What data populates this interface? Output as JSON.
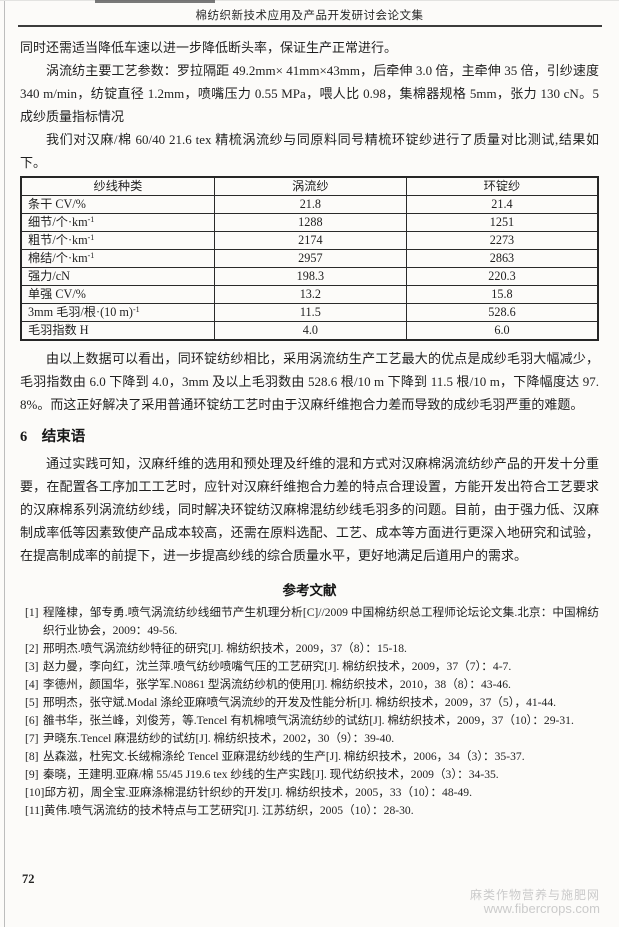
{
  "header": {
    "title": "棉纺织新技术应用及产品开发研讨会论文集"
  },
  "body": {
    "para1": "同时还需适当降低车速以进一步降低断头率，保证生产正常进行。",
    "para2": "涡流纺主要工艺参数：罗拉隔距 49.2mm× 41mm×43mm，后牵伸 3.0 倍，主牵伸 35 倍，引纱速度 340 m/min，纺锭直径 1.2mm，喷嘴压力 0.55 MPa，喂人比 0.98，集棉器规格 5mm，张力 130 cN。5　成纱质量指标情况",
    "table_intro": "我们对汉麻/棉 60/40 21.6 tex 精梳涡流纱与同原料同号精梳环锭纱进行了质量对比测试,结果如下。",
    "after_table": "由以上数据可以看出，同环锭纺纱相比，采用涡流纺生产工艺最大的优点是成纱毛羽大幅减少，毛羽指数由 6.0 下降到 4.0，3mm 及以上毛羽数由 528.6 根/10 m 下降到 11.5 根/10 m，下降幅度达 97.8%。而这正好解决了采用普通环锭纺工艺时由于汉麻纤维抱合力差而导致的成纱毛羽严重的难题。",
    "section_heading": "6　结束语",
    "conclusion": "通过实践可知，汉麻纤维的选用和预处理及纤维的混和方式对汉麻棉涡流纺纱产品的开发十分重要，在配置各工序加工工艺时，应针对汉麻纤维抱合力差的特点合理设置，方能开发出符合工艺要求的汉麻棉系列涡流纺纱线，同时解决环锭纺汉麻棉混纺纱线毛羽多的问题。目前，由于强力低、汉麻制成率低等因素致使产品成本较高，还需在原料选配、工艺、成本等方面进行更深入地研究和试验，在提高制成率的前提下，进一步提高纱线的综合质量水平，更好地满足后道用户的需求。"
  },
  "table": {
    "headers": [
      "纱线种类",
      "涡流纱",
      "环锭纱"
    ],
    "rows": [
      {
        "label": "条干 CV/%",
        "sup": "",
        "vortex": "21.8",
        "ring": "21.4"
      },
      {
        "label": "细节/个·km",
        "sup": "-1",
        "vortex": "1288",
        "ring": "1251"
      },
      {
        "label": "粗节/个·km",
        "sup": "-1",
        "vortex": "2174",
        "ring": "2273"
      },
      {
        "label": "棉结/个·km",
        "sup": "-1",
        "vortex": "2957",
        "ring": "2863"
      },
      {
        "label": "强力/cN",
        "sup": "",
        "vortex": "198.3",
        "ring": "220.3"
      },
      {
        "label": "单强 CV/%",
        "sup": "",
        "vortex": "13.2",
        "ring": "15.8"
      },
      {
        "label": "3mm 毛羽/根·(10 m)",
        "sup": "-1",
        "vortex": "11.5",
        "ring": "528.6"
      },
      {
        "label": "毛羽指数 H",
        "sup": "",
        "vortex": "4.0",
        "ring": "6.0"
      }
    ]
  },
  "references": {
    "heading": "参考文献",
    "items": [
      {
        "num": "[1]",
        "text": "程隆棣，邹专勇.喷气涡流纺纱线细节产生机理分析[C]//2009 中国棉纺织总工程师论坛论文集.北京：中国棉纺织行业协会，2009：49-56."
      },
      {
        "num": "[2]",
        "text": "邢明杰.喷气涡流纺纱特征的研究[J]. 棉纺织技术，2009，37（8）：15-18."
      },
      {
        "num": "[3]",
        "text": "赵力曼，李向红，沈兰萍.喷气纺纱喷嘴气压的工艺研究[J]. 棉纺织技术，2009，37（7）：4-7."
      },
      {
        "num": "[4]",
        "text": "李德州，颜国华，张学军.N0861 型涡流纺纱机的使用[J]. 棉纺织技术，2010，38（8）：43-46."
      },
      {
        "num": "[5]",
        "text": "邢明杰，张守斌.Modal 涤纶亚麻喷气涡流纱的开发及性能分析[J]. 棉纺织技术，2009，37（5），41-44."
      },
      {
        "num": "[6]",
        "text": "雒书华，张兰峰，刘俊芳，等.Tencel 有机棉喷气涡流纺纱的试纺[J]. 棉纺织技术，2009，37（10）：29-31."
      },
      {
        "num": "[7]",
        "text": "尹晓东.Tencel 麻混纺纱的试纺[J]. 棉纺织技术，2002，30（9）：39-40."
      },
      {
        "num": "[8]",
        "text": "丛森滋，杜宪文.长绒棉涤纶 Tencel 亚麻混纺纱线的生产[J]. 棉纺织技术，2006，34（3）：35-37."
      },
      {
        "num": "[9]",
        "text": "秦晓，王建明.亚麻/棉 55/45 J19.6 tex 纱线的生产实践[J]. 现代纺织技术，2009（3）：34-35."
      },
      {
        "num": "[10]",
        "text": "邱方初，周全宝.亚麻涤棉混纺针织纱的开发[J]. 棉纺织技术，2005，33（10）：48-49."
      },
      {
        "num": "[11]",
        "text": "黄伟.喷气涡流纺的技术特点与工艺研究[J]. 江苏纺织，2005（10）：28-30."
      }
    ]
  },
  "footer": {
    "page_number": "72",
    "watermark_line1": "麻类作物营养与施肥网",
    "watermark_line2": "www.fibercrops.com"
  },
  "colors": {
    "paper": "#fcfbf9",
    "text": "#1f1f1f",
    "table_border": "#2a2a2a",
    "watermark": "#cbcbcb"
  }
}
